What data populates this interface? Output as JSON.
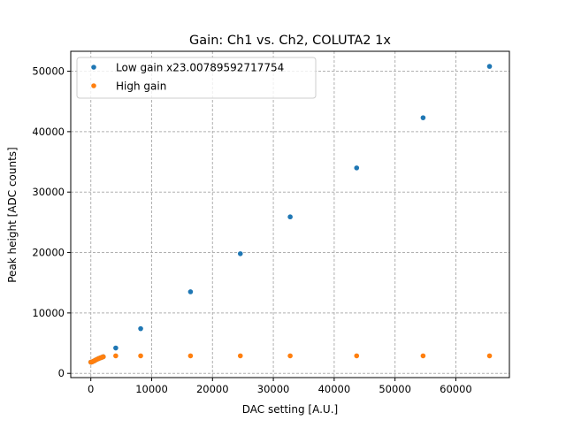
{
  "chart_data": {
    "type": "scatter",
    "title": "Gain: Ch1 vs. Ch2, COLUTA2 1x",
    "xlabel": "DAC setting [A.U.]",
    "ylabel": "Peak height [ADC counts]",
    "xlim": [
      -3300,
      68800
    ],
    "ylim": [
      -700,
      53300
    ],
    "xticks": [
      0,
      10000,
      20000,
      30000,
      40000,
      50000,
      60000
    ],
    "yticks": [
      0,
      10000,
      20000,
      30000,
      40000,
      50000
    ],
    "grid": true,
    "legend_position": "top-left",
    "series": [
      {
        "name": "Low gain x23.00789592717754",
        "color": "#1f77b4",
        "x": [
          0,
          128,
          256,
          512,
          768,
          1024,
          1280,
          1536,
          1792,
          2048,
          4096,
          8192,
          16384,
          24576,
          32768,
          43690,
          54613,
          65535
        ],
        "y": [
          1850,
          1880,
          1930,
          2050,
          2200,
          2330,
          2450,
          2550,
          2650,
          2750,
          4200,
          7400,
          13500,
          19800,
          25900,
          34000,
          42300,
          50800
        ]
      },
      {
        "name": "High gain",
        "color": "#ff7f0e",
        "x": [
          0,
          128,
          256,
          512,
          768,
          1024,
          1280,
          1536,
          1792,
          2048,
          4096,
          8192,
          16384,
          24576,
          32768,
          43690,
          54613,
          65535
        ],
        "y": [
          1850,
          1880,
          1930,
          2050,
          2200,
          2330,
          2450,
          2550,
          2650,
          2750,
          2900,
          2900,
          2900,
          2900,
          2900,
          2900,
          2900,
          2900
        ]
      }
    ]
  }
}
